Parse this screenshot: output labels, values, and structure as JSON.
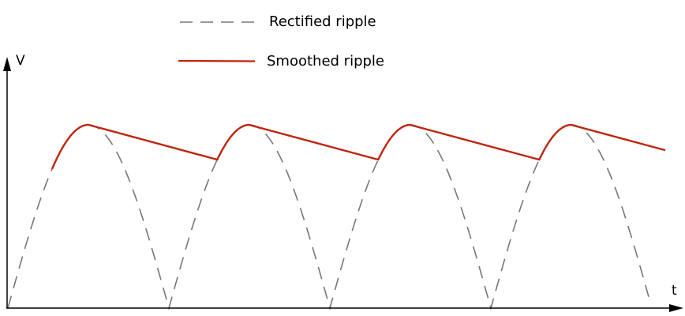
{
  "axes": {
    "y_label": "V",
    "x_label": "t",
    "color": "#000000"
  },
  "legend": {
    "rectified_label": "Rectified ripple",
    "smoothed_label": "Smoothed ripple"
  },
  "colors": {
    "rectified": "#777777",
    "smoothed": "#c0240c"
  }
}
